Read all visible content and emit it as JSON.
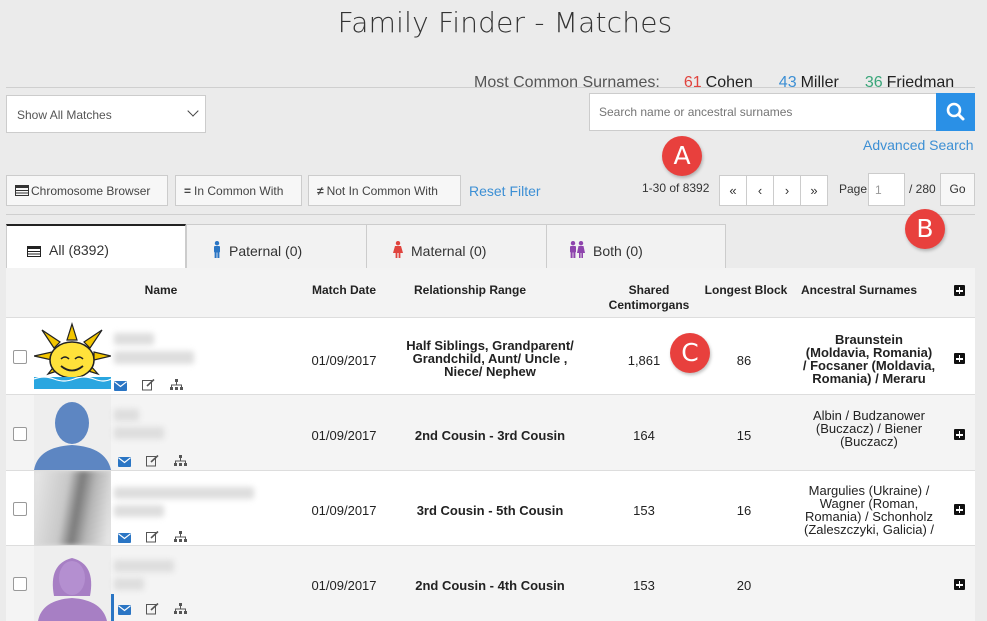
{
  "page": {
    "title": "Family Finder - Matches"
  },
  "surnames": {
    "label": "Most Common Surnames:",
    "items": [
      {
        "count": "61",
        "name": "Cohen",
        "color": "#e0443e"
      },
      {
        "count": "43",
        "name": "Miller",
        "color": "#3c8fd4"
      },
      {
        "count": "36",
        "name": "Friedman",
        "color": "#3aa67a"
      }
    ]
  },
  "filter": {
    "selected": "Show All Matches"
  },
  "search": {
    "placeholder": "Search name or ancestral surnames",
    "advanced_label": "Advanced Search"
  },
  "toolbar": {
    "chromosome_browser": "Chromosome Browser",
    "in_common_with": "In Common With",
    "not_in_common_with": "Not In Common With",
    "reset_filter": "Reset Filter"
  },
  "pagination": {
    "range": "1-30 of 8392",
    "first": "«",
    "prev": "‹",
    "next": "›",
    "last": "»",
    "page_label": "Page",
    "page_value": "1",
    "page_total": "/ 280",
    "go": "Go"
  },
  "markers": {
    "a": "A",
    "b": "B",
    "c": "C"
  },
  "tabs": [
    {
      "label": "All (8392)",
      "icon": "list-icon"
    },
    {
      "label": "Paternal (0)",
      "icon": "male-icon",
      "color": "#2a75c4"
    },
    {
      "label": "Maternal (0)",
      "icon": "female-icon",
      "color": "#e0443e"
    },
    {
      "label": "Both (0)",
      "icon": "couple-icon",
      "color": "#8e44ad"
    }
  ],
  "table": {
    "headers": {
      "name": "Name",
      "match_date": "Match Date",
      "relationship": "Relationship Range",
      "shared_cm_1": "Shared",
      "shared_cm_2": "Centimorgans",
      "longest": "Longest Block",
      "ancestral": "Ancestral Surnames"
    },
    "rows": [
      {
        "date": "01/09/2017",
        "relationship": [
          "Half Siblings, Grandparent/",
          "Grandchild, Aunt/ Uncle ,",
          "Niece/ Nephew"
        ],
        "shared_cm": "1,861",
        "longest": "86",
        "ancestral": [
          "Braunstein",
          "(Moldavia, Romania)",
          "/ Focsaner (Moldavia,",
          "Romania) / Meraru"
        ]
      },
      {
        "date": "01/09/2017",
        "relationship": [
          "2nd Cousin - 3rd Cousin"
        ],
        "shared_cm": "164",
        "longest": "15",
        "ancestral": [
          "Albin / Budzanower",
          "(Buczacz) / Biener",
          "(Buczacz)"
        ]
      },
      {
        "date": "01/09/2017",
        "relationship": [
          "3rd Cousin - 5th Cousin"
        ],
        "shared_cm": "153",
        "longest": "16",
        "ancestral": [
          "Margulies (Ukraine) /",
          "Wagner (Roman,",
          "Romania) / Schonholz",
          "(Zaleszczyki, Galicia) /"
        ]
      },
      {
        "date": "01/09/2017",
        "relationship": [
          "2nd Cousin - 4th Cousin"
        ],
        "shared_cm": "153",
        "longest": "20",
        "ancestral": []
      }
    ]
  }
}
